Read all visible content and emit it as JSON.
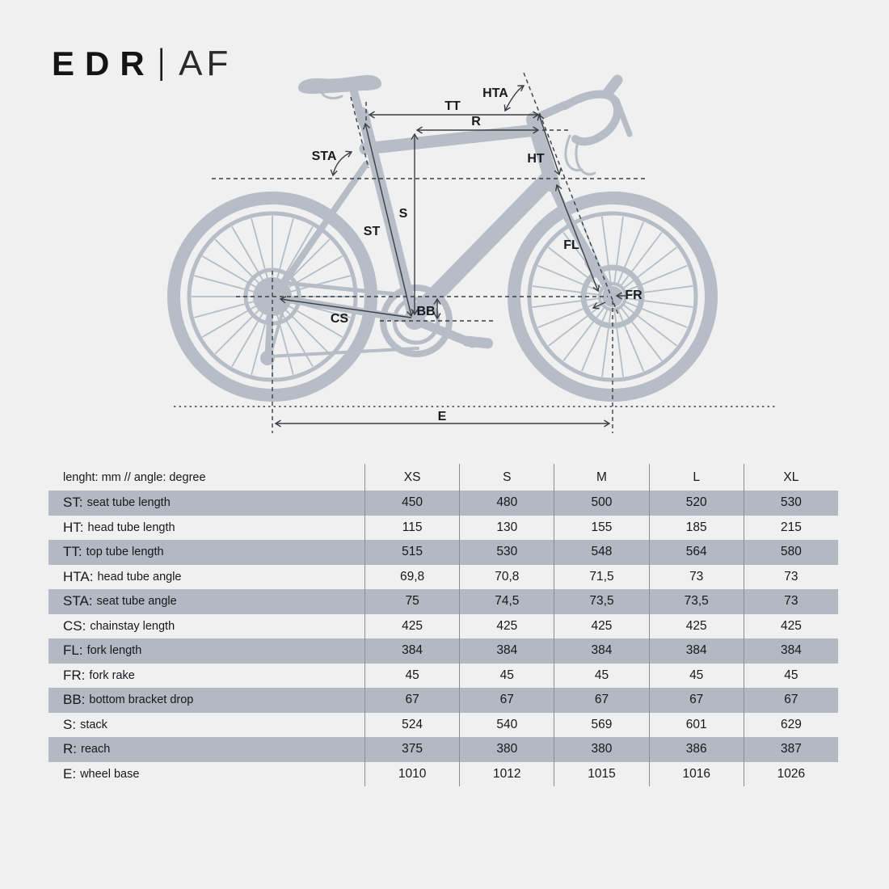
{
  "title": {
    "brand": "EDR",
    "separator": "|",
    "model": "AF"
  },
  "diagram": {
    "labels": {
      "tt": "TT",
      "r": "R",
      "hta": "HTA",
      "sta": "STA",
      "ht": "HT",
      "s": "S",
      "st": "ST",
      "fl": "FL",
      "fr": "FR",
      "bb": "BB",
      "cs": "CS",
      "e": "E"
    }
  },
  "table": {
    "header": {
      "label": "lenght: mm // angle: degree",
      "sizes": [
        "XS",
        "S",
        "M",
        "L",
        "XL"
      ]
    },
    "rows": [
      {
        "abbr": "ST:",
        "desc": "seat tube length",
        "values": [
          "450",
          "480",
          "500",
          "520",
          "530"
        ]
      },
      {
        "abbr": "HT:",
        "desc": "head tube length",
        "values": [
          "115",
          "130",
          "155",
          "185",
          "215"
        ]
      },
      {
        "abbr": "TT:",
        "desc": "top tube length",
        "values": [
          "515",
          "530",
          "548",
          "564",
          "580"
        ]
      },
      {
        "abbr": "HTA:",
        "desc": "head tube angle",
        "values": [
          "69,8",
          "70,8",
          "71,5",
          "73",
          "73"
        ]
      },
      {
        "abbr": "STA:",
        "desc": "seat tube angle",
        "values": [
          "75",
          "74,5",
          "73,5",
          "73,5",
          "73"
        ]
      },
      {
        "abbr": "CS:",
        "desc": "chainstay length",
        "values": [
          "425",
          "425",
          "425",
          "425",
          "425"
        ]
      },
      {
        "abbr": "FL:",
        "desc": "fork length",
        "values": [
          "384",
          "384",
          "384",
          "384",
          "384"
        ]
      },
      {
        "abbr": "FR:",
        "desc": "fork rake",
        "values": [
          "45",
          "45",
          "45",
          "45",
          "45"
        ]
      },
      {
        "abbr": "BB:",
        "desc": "bottom bracket drop",
        "values": [
          "67",
          "67",
          "67",
          "67",
          "67"
        ]
      },
      {
        "abbr": "S:",
        "desc": "stack",
        "values": [
          "524",
          "540",
          "569",
          "601",
          "629"
        ]
      },
      {
        "abbr": "R:",
        "desc": "reach",
        "values": [
          "375",
          "380",
          "380",
          "386",
          "387"
        ]
      },
      {
        "abbr": "E:",
        "desc": "wheel base",
        "values": [
          "1010",
          "1012",
          "1015",
          "1016",
          "1026"
        ]
      }
    ]
  },
  "colors": {
    "background": "#f0f0f1",
    "bike_silhouette": "#b6bdc7",
    "table_row_shade": "#b2b9c3",
    "annotation_line": "#3a3f45",
    "text": "#16181b"
  }
}
